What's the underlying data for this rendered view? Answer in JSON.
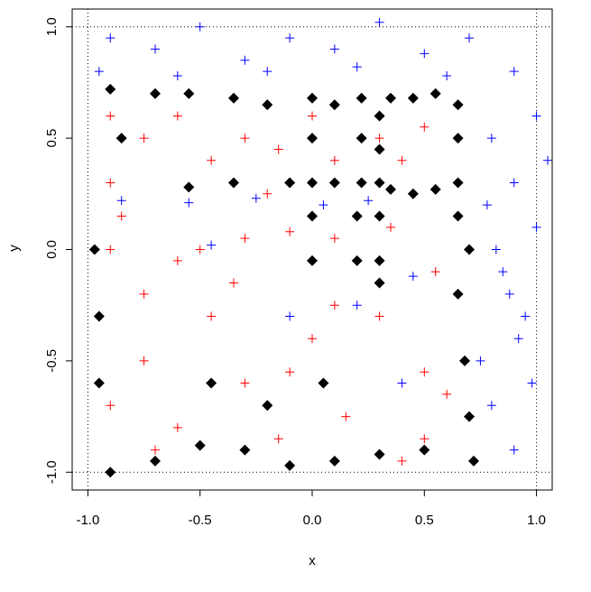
{
  "chart_data": {
    "type": "scatter",
    "x_label": "x",
    "y_label": "y",
    "xlim": [
      -1.07,
      1.07
    ],
    "ylim": [
      -1.08,
      1.08
    ],
    "xticks": [
      {
        "value": -1,
        "label": "-1.0"
      },
      {
        "value": -0.5,
        "label": "-0.5"
      },
      {
        "value": 0,
        "label": "0.0"
      },
      {
        "value": 0.5,
        "label": "0.5"
      },
      {
        "value": 1,
        "label": "1.0"
      }
    ],
    "yticks": [
      {
        "value": -1,
        "label": "-1.0"
      },
      {
        "value": -0.5,
        "label": "-0.5"
      },
      {
        "value": 0,
        "label": "0.0"
      },
      {
        "value": 0.5,
        "label": "0.5"
      },
      {
        "value": 1,
        "label": "1.0"
      }
    ],
    "dotted_box": {
      "x": [
        -1,
        1
      ],
      "y": [
        -1,
        1
      ]
    },
    "series": [
      {
        "color": "#0000ff",
        "marker": "plus",
        "x": [
          -0.9,
          -0.7,
          -0.5,
          -0.3,
          -0.1,
          0.1,
          0.3,
          0.5,
          0.7,
          0.9,
          -0.95,
          -0.6,
          -0.2,
          0.2,
          0.6,
          1.0,
          0.8,
          0.9,
          1.0,
          0.85,
          0.95,
          0.75,
          0.8,
          0.9,
          1.05,
          0.78,
          0.88,
          0.98,
          0.82,
          0.92,
          -0.85,
          -0.55,
          -0.25,
          0.05,
          0.25,
          0.45,
          -0.45,
          -0.1,
          0.2,
          0.4
        ],
        "values": [
          0.95,
          0.9,
          1.0,
          0.85,
          0.95,
          0.9,
          1.02,
          0.88,
          0.95,
          0.8,
          0.8,
          0.78,
          0.8,
          0.82,
          0.78,
          0.6,
          0.5,
          0.3,
          0.1,
          -0.1,
          -0.3,
          -0.5,
          -0.7,
          -0.9,
          0.4,
          0.2,
          -0.2,
          -0.6,
          0.0,
          -0.4,
          0.22,
          0.21,
          0.23,
          0.2,
          0.22,
          -0.12,
          0.02,
          -0.3,
          -0.25,
          -0.6
        ]
      },
      {
        "color": "#ff0000",
        "marker": "plus",
        "x": [
          -0.9,
          -0.9,
          -0.9,
          -0.75,
          -0.75,
          -0.75,
          -0.6,
          -0.6,
          -0.45,
          -0.45,
          -0.3,
          -0.3,
          -0.15,
          -0.15,
          0.0,
          0.0,
          0.1,
          0.1,
          0.3,
          0.4,
          0.5,
          0.55,
          -0.9,
          -0.7,
          -0.5,
          -0.3,
          -0.1,
          0.1,
          0.3,
          0.5,
          0.5,
          -0.85,
          -0.6,
          -0.35,
          -0.1,
          0.15,
          0.4,
          0.6,
          -0.2,
          0.35
        ],
        "values": [
          0.6,
          0.3,
          0.0,
          0.5,
          -0.2,
          -0.5,
          0.6,
          -0.8,
          0.4,
          -0.3,
          0.5,
          -0.6,
          0.45,
          -0.85,
          0.6,
          -0.4,
          0.4,
          0.05,
          0.5,
          0.4,
          0.55,
          -0.1,
          -0.7,
          -0.9,
          0.0,
          0.05,
          0.08,
          -0.25,
          -0.3,
          -0.55,
          -0.85,
          0.15,
          -0.05,
          -0.15,
          -0.55,
          -0.75,
          -0.95,
          -0.65,
          0.25,
          0.1
        ]
      },
      {
        "color": "#000000",
        "marker": "diamond",
        "x": [
          0.3,
          0.3,
          0.3,
          0.35,
          0.45,
          0.55,
          0.65,
          0.65,
          0.65,
          0.55,
          0.45,
          0.35,
          0,
          0,
          0,
          0.1,
          0.22,
          0.22,
          0.22,
          0.1,
          -0.9,
          -0.7,
          -0.55,
          -0.35,
          -0.2,
          -0.1,
          -0.35,
          -0.55,
          0,
          0.2,
          0.2,
          0,
          0.3,
          0.65,
          0.7,
          0.3,
          0.3,
          0.65,
          0.68,
          0.7,
          0.72,
          0.5,
          0.3,
          0.1,
          -0.1,
          -0.3,
          -0.5,
          -0.7,
          -0.9,
          -0.95,
          -0.95,
          -0.97,
          -0.85,
          -0.45,
          -0.2,
          0.05
        ],
        "values": [
          0.3,
          0.45,
          0.6,
          0.68,
          0.68,
          0.7,
          0.65,
          0.5,
          0.3,
          0.27,
          0.25,
          0.27,
          0.3,
          0.5,
          0.68,
          0.65,
          0.68,
          0.5,
          0.3,
          0.3,
          0.72,
          0.7,
          0.7,
          0.68,
          0.65,
          0.3,
          0.3,
          0.28,
          0.15,
          0.15,
          -0.05,
          -0.05,
          0.15,
          0.15,
          0,
          -0.05,
          -0.15,
          -0.2,
          -0.5,
          -0.75,
          -0.95,
          -0.9,
          -0.92,
          -0.95,
          -0.97,
          -0.9,
          -0.88,
          -0.95,
          -1.0,
          -0.6,
          -0.3,
          0.0,
          0.5,
          -0.6,
          -0.7,
          -0.6
        ]
      }
    ]
  }
}
